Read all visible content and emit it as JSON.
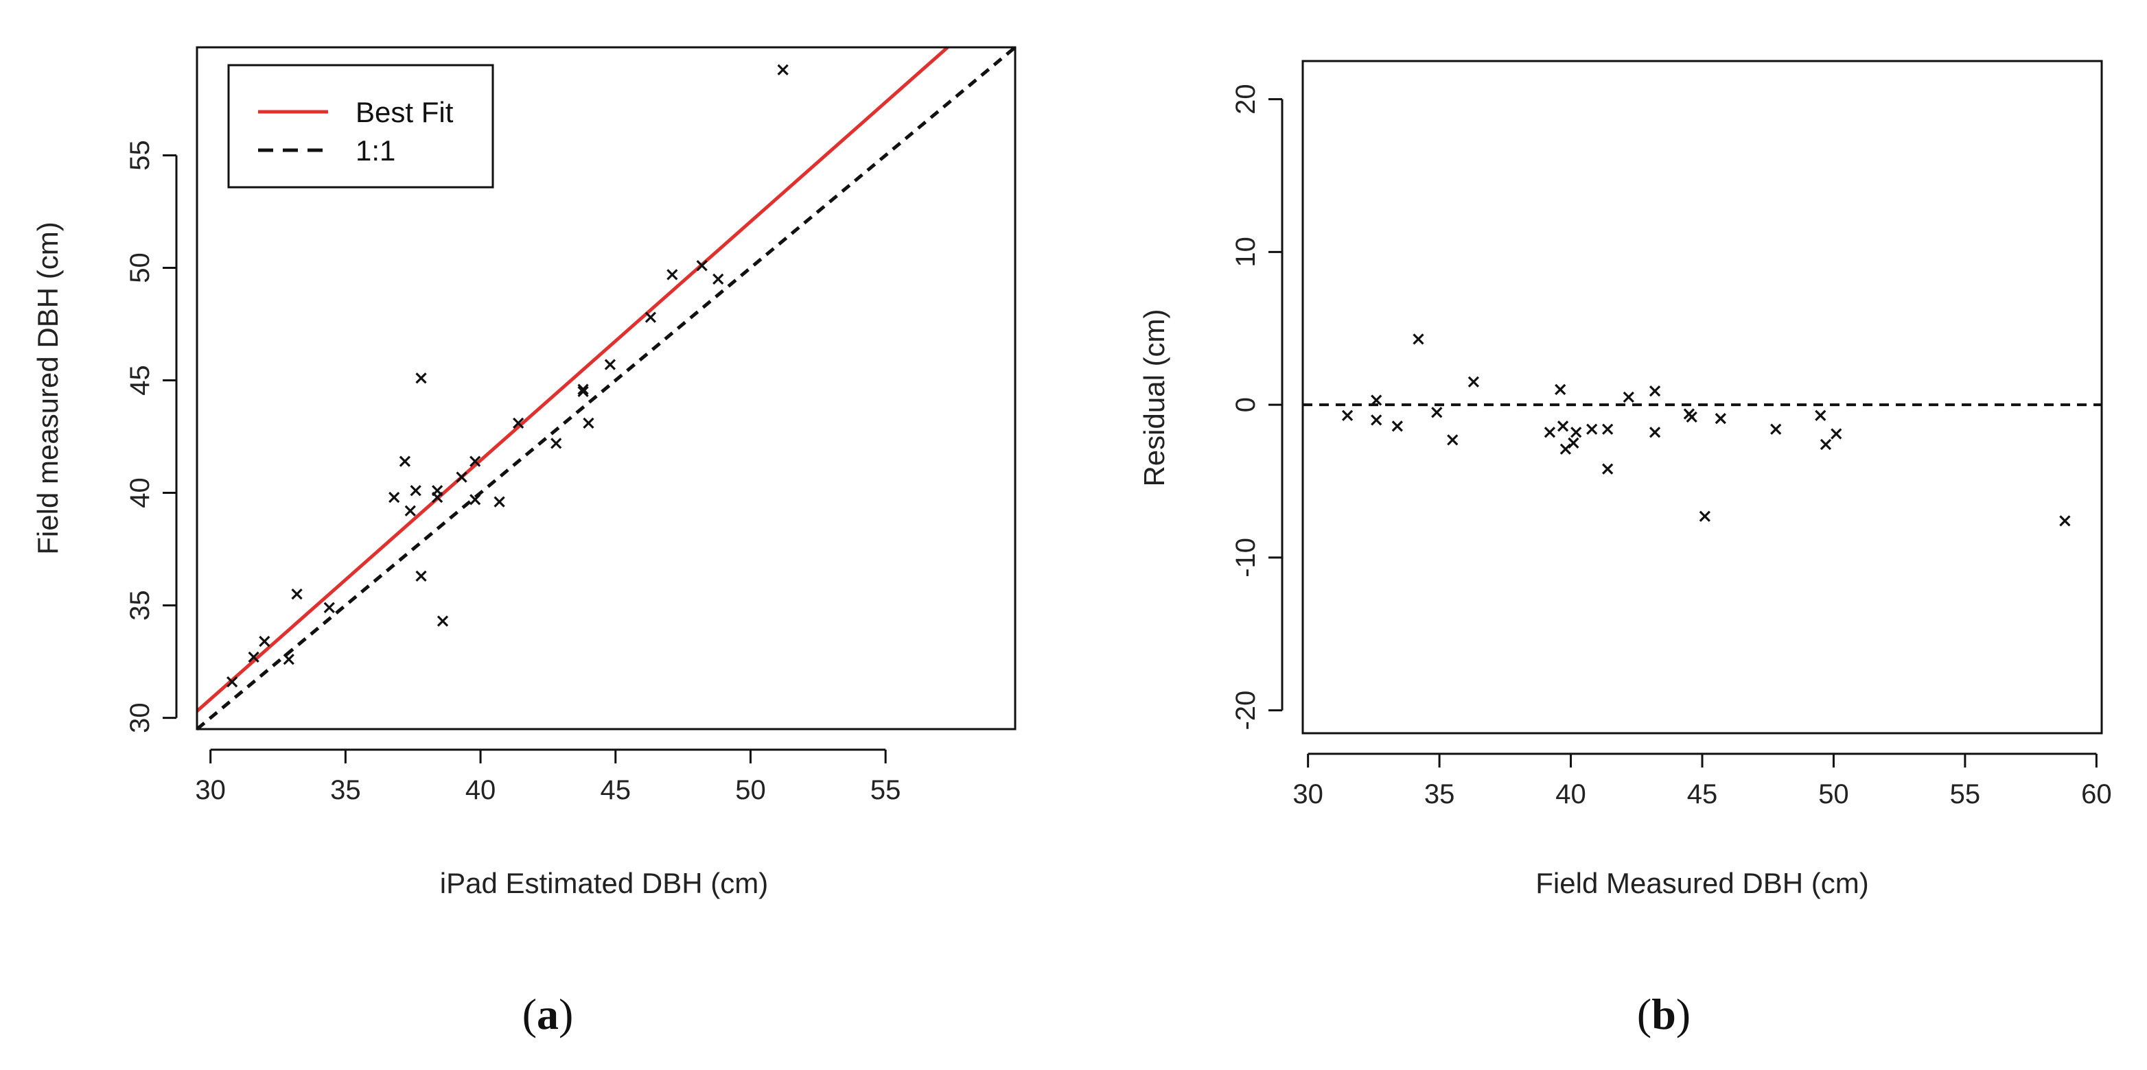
{
  "chart_data": [
    {
      "id": "a",
      "type": "scatter",
      "panel_label": "a",
      "xlabel": "iPad Estimated DBH (cm)",
      "ylabel": "Field measured DBH (cm)",
      "xlim": [
        29.5,
        59.8
      ],
      "ylim": [
        29.5,
        59.8
      ],
      "xticks": [
        30,
        35,
        40,
        45,
        50,
        55
      ],
      "yticks": [
        30,
        35,
        40,
        45,
        50,
        55
      ],
      "legend": {
        "position": "top-left",
        "entries": [
          {
            "label": "Best Fit",
            "color": "#e0312f",
            "style": "solid"
          },
          {
            "label": "1:1",
            "color": "#111111",
            "style": "dashed"
          }
        ]
      },
      "lines": [
        {
          "name": "Best Fit",
          "color": "#e0312f",
          "style": "solid",
          "x": [
            29.5,
            57.3
          ],
          "y": [
            30.3,
            59.8
          ]
        },
        {
          "name": "1:1",
          "color": "#111111",
          "style": "dashed",
          "x": [
            29.5,
            59.8
          ],
          "y": [
            29.5,
            59.8
          ]
        }
      ],
      "series": [
        {
          "name": "trees",
          "marker": "x",
          "color": "#111111",
          "points": [
            [
              30.8,
              31.6
            ],
            [
              31.6,
              32.7
            ],
            [
              32.0,
              33.4
            ],
            [
              32.9,
              32.6
            ],
            [
              33.2,
              35.5
            ],
            [
              34.4,
              34.9
            ],
            [
              36.8,
              39.8
            ],
            [
              37.2,
              41.4
            ],
            [
              37.4,
              39.2
            ],
            [
              37.6,
              40.1
            ],
            [
              37.8,
              36.3
            ],
            [
              37.8,
              45.1
            ],
            [
              38.4,
              40.1
            ],
            [
              38.4,
              39.8
            ],
            [
              38.6,
              34.3
            ],
            [
              39.3,
              40.7
            ],
            [
              39.8,
              39.7
            ],
            [
              39.8,
              41.4
            ],
            [
              40.7,
              39.6
            ],
            [
              41.4,
              43.1
            ],
            [
              42.8,
              42.2
            ],
            [
              43.8,
              44.5
            ],
            [
              43.8,
              44.6
            ],
            [
              44.0,
              43.1
            ],
            [
              44.8,
              45.7
            ],
            [
              46.3,
              47.8
            ],
            [
              47.1,
              49.7
            ],
            [
              48.2,
              50.1
            ],
            [
              48.8,
              49.5
            ],
            [
              51.2,
              58.8
            ]
          ]
        }
      ]
    },
    {
      "id": "b",
      "type": "scatter",
      "panel_label": "b",
      "xlabel": "Field Measured DBH (cm)",
      "ylabel": "Residual (cm)",
      "xlim": [
        29.8,
        60.2
      ],
      "ylim": [
        -21.5,
        22.5
      ],
      "xticks": [
        30,
        35,
        40,
        45,
        50,
        55,
        60
      ],
      "yticks": [
        -20,
        -10,
        0,
        10,
        20
      ],
      "reference_line": {
        "y": 0,
        "style": "dashed",
        "color": "#111111"
      },
      "series": [
        {
          "name": "residuals",
          "marker": "x",
          "color": "#111111",
          "points": [
            [
              31.5,
              -0.7
            ],
            [
              32.6,
              0.3
            ],
            [
              32.6,
              -1.0
            ],
            [
              33.4,
              -1.4
            ],
            [
              34.2,
              4.3
            ],
            [
              34.9,
              -0.5
            ],
            [
              35.5,
              -2.3
            ],
            [
              36.3,
              1.5
            ],
            [
              39.2,
              -1.8
            ],
            [
              39.6,
              1.0
            ],
            [
              39.7,
              -1.4
            ],
            [
              39.8,
              -2.9
            ],
            [
              40.1,
              -2.5
            ],
            [
              40.2,
              -1.8
            ],
            [
              40.8,
              -1.6
            ],
            [
              41.4,
              -1.6
            ],
            [
              41.4,
              -4.2
            ],
            [
              42.2,
              0.5
            ],
            [
              43.2,
              0.9
            ],
            [
              43.2,
              -1.8
            ],
            [
              44.5,
              -0.6
            ],
            [
              44.6,
              -0.8
            ],
            [
              45.1,
              -7.3
            ],
            [
              45.7,
              -0.9
            ],
            [
              47.8,
              -1.6
            ],
            [
              49.5,
              -0.7
            ],
            [
              49.7,
              -2.6
            ],
            [
              50.1,
              -1.9
            ],
            [
              58.8,
              -7.6
            ]
          ]
        }
      ]
    }
  ]
}
